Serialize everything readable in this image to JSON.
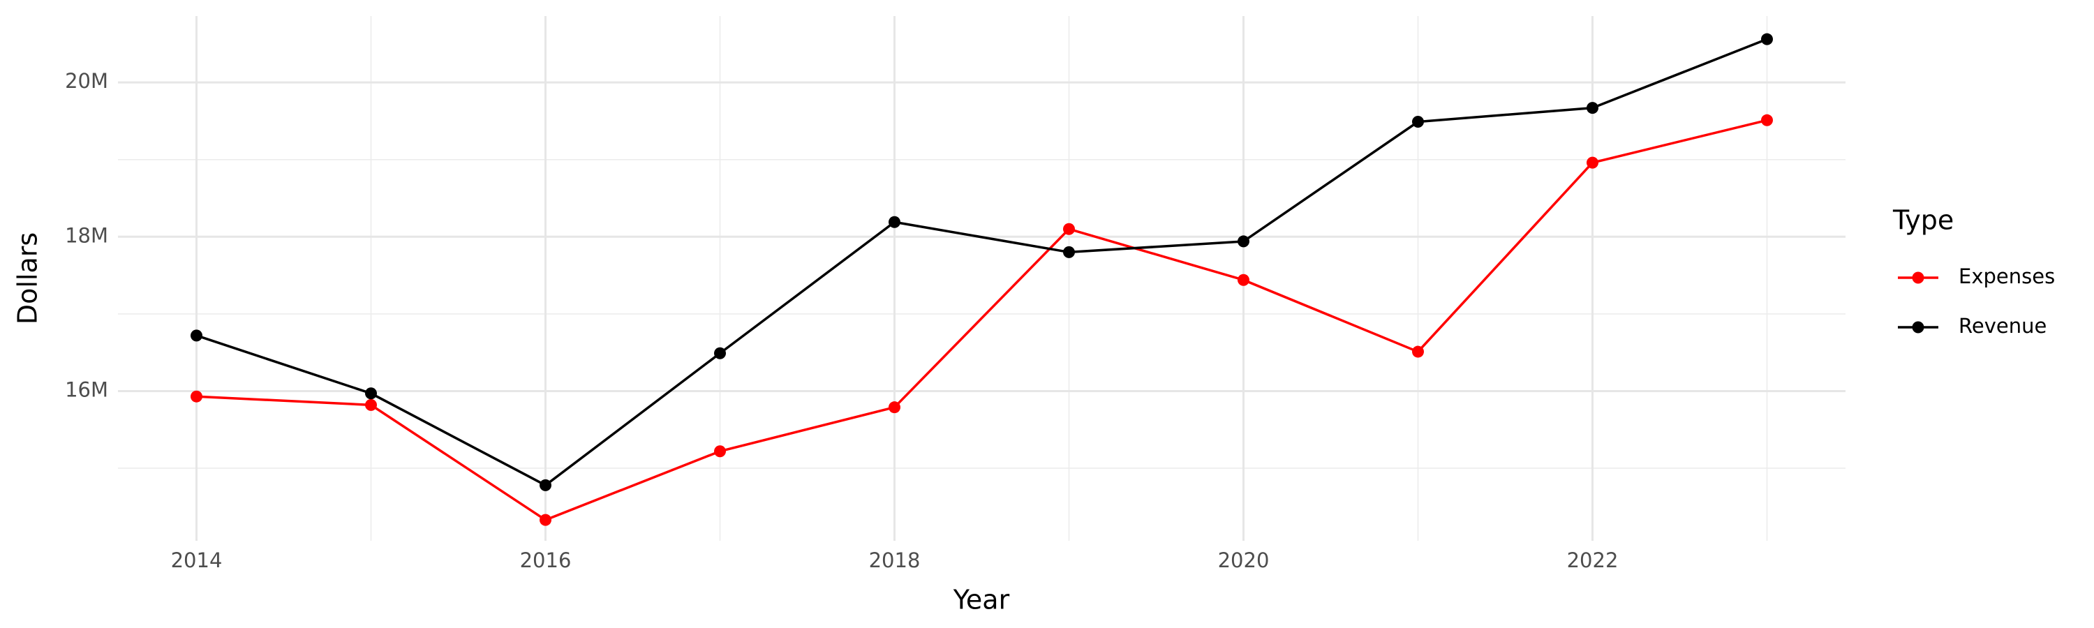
{
  "chart_data": {
    "type": "line",
    "x_label": "Year",
    "y_label": "Dollars",
    "legend_title": "Type",
    "legend_position": "right",
    "grid": true,
    "x": [
      2014,
      2015,
      2016,
      2017,
      2018,
      2019,
      2020,
      2021,
      2022,
      2023
    ],
    "series": [
      {
        "name": "Expenses",
        "color": "#ff0000",
        "values": [
          15930000,
          15820000,
          14330000,
          15220000,
          15790000,
          18100000,
          17440000,
          16510000,
          18960000,
          19510000
        ]
      },
      {
        "name": "Revenue",
        "color": "#000000",
        "values": [
          16720000,
          15970000,
          14780000,
          16490000,
          18190000,
          17800000,
          17940000,
          19490000,
          19670000,
          20560000
        ]
      }
    ],
    "xlim": [
      2013.55,
      2023.45
    ],
    "xticks": [
      2014,
      2016,
      2018,
      2020,
      2022
    ],
    "x_minor_ticks": [
      2015,
      2017,
      2019,
      2021,
      2023
    ],
    "ylim": [
      14060000,
      20860000
    ],
    "yticks": [
      {
        "value": 16000000,
        "label": "16M"
      },
      {
        "value": 18000000,
        "label": "18M"
      },
      {
        "value": 20000000,
        "label": "20M"
      }
    ],
    "y_minor_ticks": [
      15000000,
      17000000,
      19000000
    ]
  }
}
